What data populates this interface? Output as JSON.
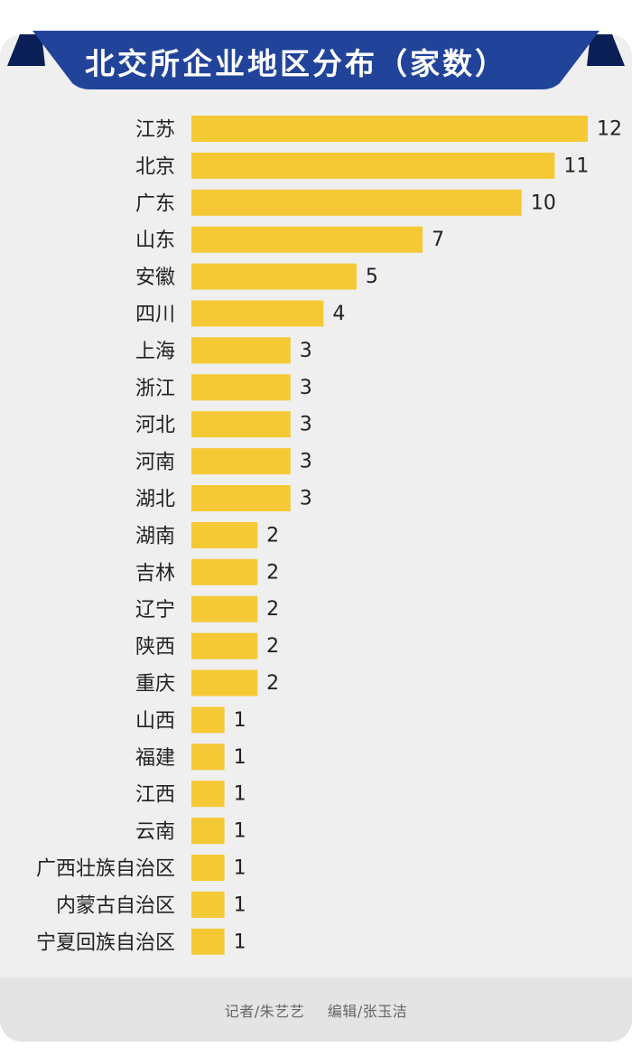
{
  "colors": {
    "bar": "#f4c935",
    "banner": "#21449a",
    "banner_dark": "#0b1f57",
    "card": "#efefef",
    "footer_band": "#e4e4e4"
  },
  "chart_data": {
    "type": "bar",
    "orientation": "horizontal",
    "title": "北交所企业地区分布（家数）",
    "categories": [
      "江苏",
      "北京",
      "广东",
      "山东",
      "安徽",
      "四川",
      "上海",
      "浙江",
      "河北",
      "河南",
      "湖北",
      "湖南",
      "吉林",
      "辽宁",
      "陕西",
      "重庆",
      "山西",
      "福建",
      "江西",
      "云南",
      "广西壮族自治区",
      "内蒙古自治区",
      "宁夏回族自治区"
    ],
    "values": [
      12,
      11,
      10,
      7,
      5,
      4,
      3,
      3,
      3,
      3,
      3,
      2,
      2,
      2,
      2,
      2,
      1,
      1,
      1,
      1,
      1,
      1,
      1
    ],
    "xlim": [
      0,
      12
    ],
    "grid": false,
    "legend": "none",
    "data_labels": true
  },
  "footer": {
    "reporter": "记者/朱艺艺",
    "editor": "编辑/张玉洁"
  }
}
